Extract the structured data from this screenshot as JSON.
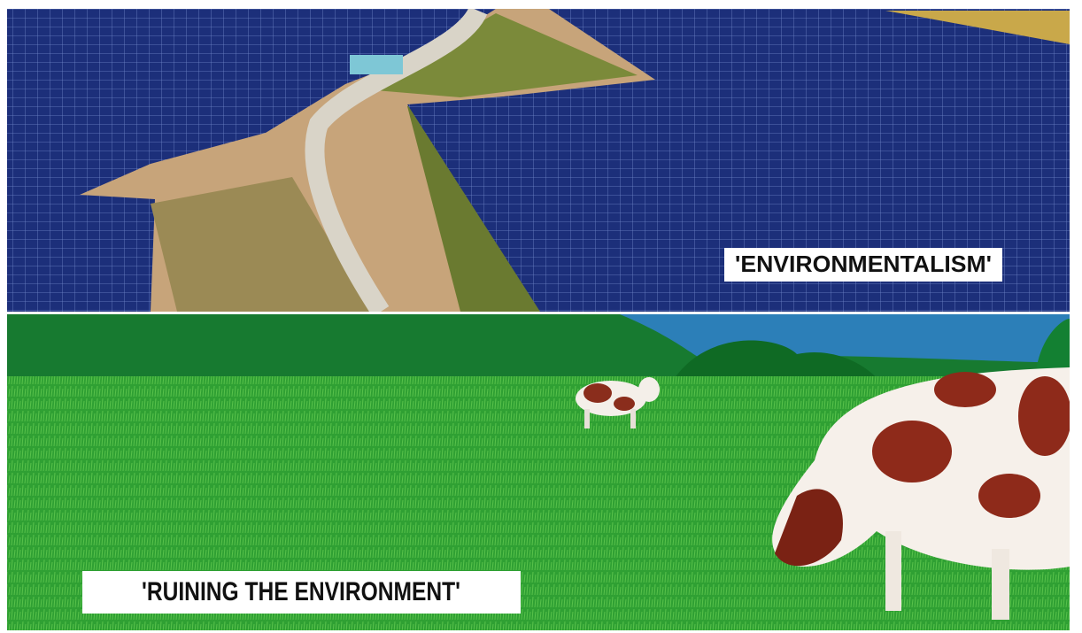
{
  "panels": [
    {
      "caption": "'ENVIRONMENTALISM'"
    },
    {
      "caption": "'RUINING THE ENVIRONMENT'"
    }
  ]
}
